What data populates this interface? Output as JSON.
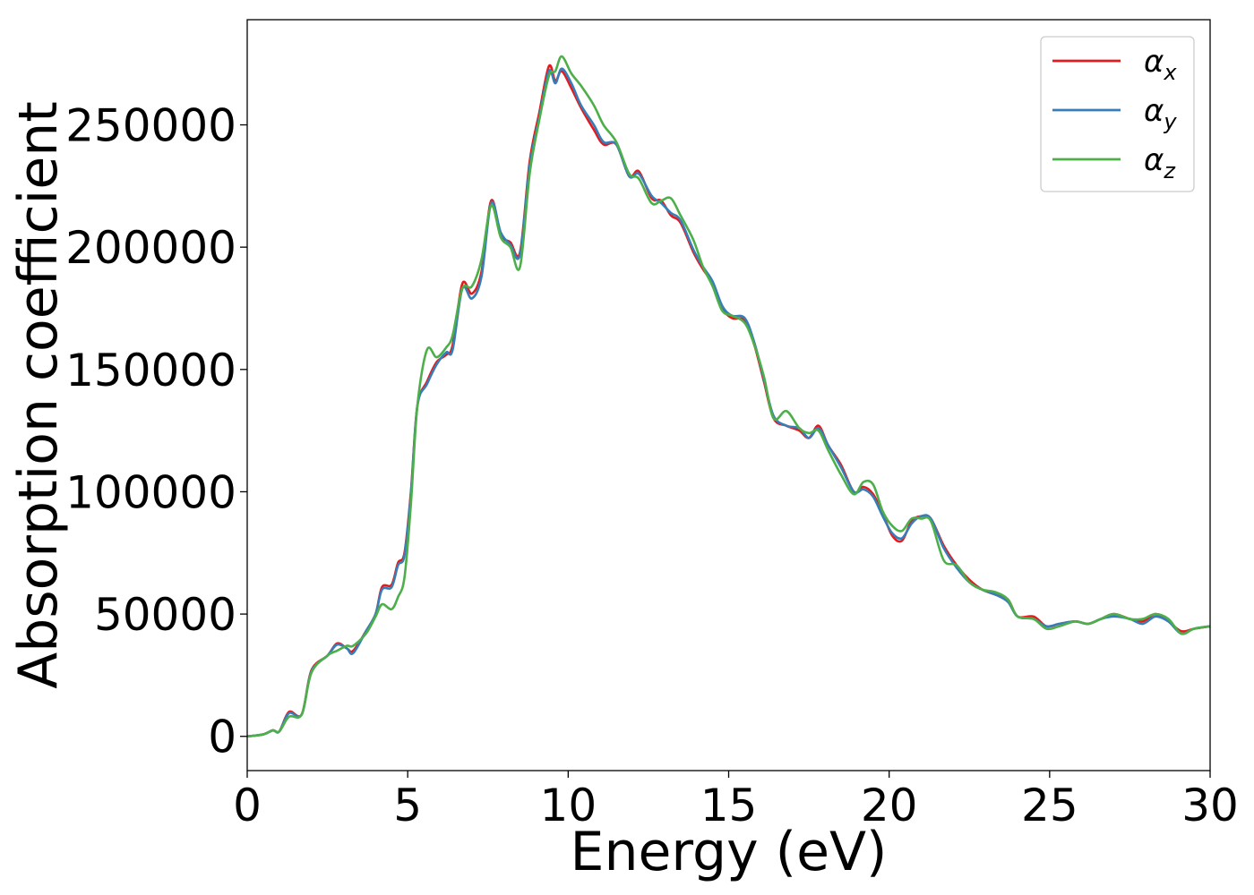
{
  "chart_data": {
    "type": "line",
    "title": "",
    "xlabel": "Energy (eV)",
    "ylabel": "Absorption coefficient",
    "xlim": [
      0,
      30
    ],
    "ylim": [
      -14000,
      293000
    ],
    "grid": false,
    "legend_position": "top-right",
    "x_ticks": [
      0,
      5,
      10,
      15,
      20,
      25,
      30
    ],
    "x_tick_labels": [
      "0",
      "5",
      "10",
      "15",
      "20",
      "25",
      "30"
    ],
    "y_ticks": [
      0,
      50000,
      100000,
      150000,
      200000,
      250000
    ],
    "y_tick_labels": [
      "0",
      "50000",
      "100000",
      "150000",
      "200000",
      "250000"
    ],
    "series": [
      {
        "name": "αx",
        "legend_symbol": "α",
        "legend_subscript": "x",
        "color": "#e41a1c",
        "points": [
          [
            0,
            0
          ],
          [
            0.5,
            800
          ],
          [
            0.8,
            2500
          ],
          [
            1.0,
            2000
          ],
          [
            1.3,
            10000
          ],
          [
            1.7,
            9000
          ],
          [
            2.0,
            27000
          ],
          [
            2.5,
            33000
          ],
          [
            2.8,
            38000
          ],
          [
            3.1,
            36000
          ],
          [
            3.3,
            35000
          ],
          [
            3.7,
            43000
          ],
          [
            4.0,
            50000
          ],
          [
            4.2,
            61000
          ],
          [
            4.5,
            62000
          ],
          [
            4.7,
            71000
          ],
          [
            4.9,
            75000
          ],
          [
            5.1,
            100000
          ],
          [
            5.3,
            135000
          ],
          [
            5.6,
            145000
          ],
          [
            5.9,
            153000
          ],
          [
            6.2,
            156000
          ],
          [
            6.4,
            160000
          ],
          [
            6.7,
            185000
          ],
          [
            7.0,
            181000
          ],
          [
            7.3,
            190000
          ],
          [
            7.6,
            219000
          ],
          [
            7.9,
            205000
          ],
          [
            8.2,
            202000
          ],
          [
            8.5,
            198000
          ],
          [
            8.8,
            235000
          ],
          [
            9.1,
            255000
          ],
          [
            9.4,
            274000
          ],
          [
            9.6,
            268000
          ],
          [
            9.8,
            272000
          ],
          [
            10.1,
            265000
          ],
          [
            10.4,
            257000
          ],
          [
            10.8,
            248000
          ],
          [
            11.1,
            242000
          ],
          [
            11.5,
            242000
          ],
          [
            11.9,
            229000
          ],
          [
            12.2,
            231000
          ],
          [
            12.6,
            220000
          ],
          [
            12.9,
            219000
          ],
          [
            13.2,
            213000
          ],
          [
            13.5,
            210000
          ],
          [
            13.9,
            198000
          ],
          [
            14.2,
            191000
          ],
          [
            14.5,
            185000
          ],
          [
            14.8,
            175000
          ],
          [
            15.1,
            171000
          ],
          [
            15.5,
            170000
          ],
          [
            15.8,
            160000
          ],
          [
            16.1,
            145000
          ],
          [
            16.4,
            130000
          ],
          [
            16.8,
            127000
          ],
          [
            17.2,
            125000
          ],
          [
            17.5,
            122000
          ],
          [
            17.8,
            127000
          ],
          [
            18.1,
            119000
          ],
          [
            18.5,
            111000
          ],
          [
            18.9,
            100000
          ],
          [
            19.2,
            102000
          ],
          [
            19.5,
            99000
          ],
          [
            19.8,
            91000
          ],
          [
            20.1,
            82000
          ],
          [
            20.4,
            80000
          ],
          [
            20.7,
            88000
          ],
          [
            21.0,
            90000
          ],
          [
            21.3,
            89000
          ],
          [
            21.7,
            78000
          ],
          [
            22.1,
            70000
          ],
          [
            22.5,
            64000
          ],
          [
            22.9,
            60000
          ],
          [
            23.3,
            58000
          ],
          [
            23.7,
            56000
          ],
          [
            24.0,
            49000
          ],
          [
            24.5,
            49000
          ],
          [
            24.9,
            45000
          ],
          [
            25.3,
            46000
          ],
          [
            25.8,
            47000
          ],
          [
            26.2,
            46000
          ],
          [
            26.6,
            48000
          ],
          [
            27.0,
            50000
          ],
          [
            27.5,
            48000
          ],
          [
            27.9,
            47000
          ],
          [
            28.3,
            50000
          ],
          [
            28.7,
            47000
          ],
          [
            29.1,
            43000
          ],
          [
            29.5,
            44000
          ],
          [
            30.0,
            45000
          ]
        ]
      },
      {
        "name": "αy",
        "legend_symbol": "α",
        "legend_subscript": "y",
        "color": "#377eb8",
        "points": [
          [
            0,
            0
          ],
          [
            0.5,
            800
          ],
          [
            0.8,
            2400
          ],
          [
            1.0,
            2000
          ],
          [
            1.3,
            9500
          ],
          [
            1.7,
            9000
          ],
          [
            2.0,
            26500
          ],
          [
            2.5,
            33000
          ],
          [
            2.8,
            37500
          ],
          [
            3.1,
            36000
          ],
          [
            3.3,
            34000
          ],
          [
            3.7,
            43000
          ],
          [
            4.0,
            50000
          ],
          [
            4.2,
            60000
          ],
          [
            4.5,
            61000
          ],
          [
            4.7,
            70000
          ],
          [
            4.9,
            74000
          ],
          [
            5.1,
            99000
          ],
          [
            5.3,
            135000
          ],
          [
            5.6,
            144000
          ],
          [
            5.9,
            152000
          ],
          [
            6.2,
            157000
          ],
          [
            6.4,
            158000
          ],
          [
            6.7,
            183000
          ],
          [
            7.0,
            179000
          ],
          [
            7.3,
            188000
          ],
          [
            7.6,
            218000
          ],
          [
            7.9,
            206000
          ],
          [
            8.2,
            201000
          ],
          [
            8.5,
            197000
          ],
          [
            8.8,
            233000
          ],
          [
            9.1,
            253000
          ],
          [
            9.4,
            272000
          ],
          [
            9.6,
            267000
          ],
          [
            9.8,
            273000
          ],
          [
            10.1,
            267000
          ],
          [
            10.4,
            258000
          ],
          [
            10.8,
            250000
          ],
          [
            11.1,
            243000
          ],
          [
            11.5,
            242000
          ],
          [
            11.9,
            229000
          ],
          [
            12.2,
            230000
          ],
          [
            12.6,
            221000
          ],
          [
            12.9,
            218000
          ],
          [
            13.2,
            214000
          ],
          [
            13.5,
            211000
          ],
          [
            13.9,
            199000
          ],
          [
            14.2,
            192000
          ],
          [
            14.5,
            186000
          ],
          [
            14.8,
            176000
          ],
          [
            15.1,
            172000
          ],
          [
            15.5,
            171000
          ],
          [
            15.8,
            161000
          ],
          [
            16.1,
            146000
          ],
          [
            16.4,
            131000
          ],
          [
            16.8,
            127000
          ],
          [
            17.2,
            126000
          ],
          [
            17.5,
            122000
          ],
          [
            17.8,
            126000
          ],
          [
            18.1,
            119000
          ],
          [
            18.5,
            110000
          ],
          [
            18.9,
            100000
          ],
          [
            19.2,
            101000
          ],
          [
            19.5,
            98000
          ],
          [
            19.8,
            90000
          ],
          [
            20.1,
            83000
          ],
          [
            20.4,
            81000
          ],
          [
            20.7,
            87000
          ],
          [
            21.0,
            90000
          ],
          [
            21.3,
            89000
          ],
          [
            21.7,
            77000
          ],
          [
            22.1,
            69000
          ],
          [
            22.5,
            63000
          ],
          [
            22.9,
            60000
          ],
          [
            23.3,
            58000
          ],
          [
            23.7,
            55000
          ],
          [
            24.0,
            49000
          ],
          [
            24.5,
            48000
          ],
          [
            24.9,
            45000
          ],
          [
            25.3,
            46000
          ],
          [
            25.8,
            47000
          ],
          [
            26.2,
            46000
          ],
          [
            26.6,
            48000
          ],
          [
            27.0,
            49000
          ],
          [
            27.5,
            48000
          ],
          [
            27.9,
            46000
          ],
          [
            28.3,
            49000
          ],
          [
            28.7,
            47000
          ],
          [
            29.1,
            42000
          ],
          [
            29.5,
            44000
          ],
          [
            30.0,
            45000
          ]
        ]
      },
      {
        "name": "αz",
        "legend_symbol": "α",
        "legend_subscript": "z",
        "color": "#4daf4a",
        "points": [
          [
            0,
            0
          ],
          [
            0.5,
            800
          ],
          [
            0.8,
            2500
          ],
          [
            1.0,
            2000
          ],
          [
            1.3,
            8000
          ],
          [
            1.7,
            9000
          ],
          [
            2.0,
            26000
          ],
          [
            2.5,
            33000
          ],
          [
            2.8,
            35000
          ],
          [
            3.1,
            37000
          ],
          [
            3.3,
            37000
          ],
          [
            3.7,
            42000
          ],
          [
            4.0,
            49000
          ],
          [
            4.2,
            54000
          ],
          [
            4.5,
            52000
          ],
          [
            4.7,
            57000
          ],
          [
            4.9,
            65000
          ],
          [
            5.1,
            95000
          ],
          [
            5.3,
            135000
          ],
          [
            5.6,
            158000
          ],
          [
            5.9,
            155000
          ],
          [
            6.2,
            159000
          ],
          [
            6.4,
            164000
          ],
          [
            6.7,
            183000
          ],
          [
            7.0,
            184000
          ],
          [
            7.3,
            195000
          ],
          [
            7.6,
            217000
          ],
          [
            7.9,
            204000
          ],
          [
            8.2,
            200000
          ],
          [
            8.5,
            192000
          ],
          [
            8.8,
            230000
          ],
          [
            9.1,
            252000
          ],
          [
            9.4,
            270000
          ],
          [
            9.6,
            272000
          ],
          [
            9.8,
            278000
          ],
          [
            10.1,
            271000
          ],
          [
            10.4,
            266000
          ],
          [
            10.8,
            258000
          ],
          [
            11.1,
            250000
          ],
          [
            11.5,
            243000
          ],
          [
            11.9,
            230000
          ],
          [
            12.2,
            228000
          ],
          [
            12.6,
            218000
          ],
          [
            12.9,
            219000
          ],
          [
            13.2,
            220000
          ],
          [
            13.5,
            213000
          ],
          [
            13.9,
            203000
          ],
          [
            14.2,
            192000
          ],
          [
            14.5,
            184000
          ],
          [
            14.8,
            174000
          ],
          [
            15.1,
            172000
          ],
          [
            15.5,
            169000
          ],
          [
            15.8,
            160000
          ],
          [
            16.1,
            147000
          ],
          [
            16.4,
            130000
          ],
          [
            16.8,
            133000
          ],
          [
            17.2,
            126000
          ],
          [
            17.5,
            124000
          ],
          [
            17.8,
            125000
          ],
          [
            18.1,
            117000
          ],
          [
            18.5,
            107000
          ],
          [
            18.9,
            99000
          ],
          [
            19.2,
            104000
          ],
          [
            19.5,
            103000
          ],
          [
            19.8,
            92000
          ],
          [
            20.1,
            86000
          ],
          [
            20.4,
            84000
          ],
          [
            20.7,
            89000
          ],
          [
            21.0,
            89000
          ],
          [
            21.3,
            88000
          ],
          [
            21.7,
            72000
          ],
          [
            22.1,
            70000
          ],
          [
            22.5,
            63000
          ],
          [
            22.9,
            60000
          ],
          [
            23.3,
            59000
          ],
          [
            23.7,
            56000
          ],
          [
            24.0,
            49000
          ],
          [
            24.5,
            48000
          ],
          [
            24.9,
            44000
          ],
          [
            25.3,
            45000
          ],
          [
            25.8,
            47000
          ],
          [
            26.2,
            46000
          ],
          [
            26.6,
            48000
          ],
          [
            27.0,
            50000
          ],
          [
            27.5,
            48000
          ],
          [
            27.9,
            48000
          ],
          [
            28.3,
            50000
          ],
          [
            28.7,
            48000
          ],
          [
            29.1,
            42000
          ],
          [
            29.5,
            44000
          ],
          [
            30.0,
            45000
          ]
        ]
      }
    ]
  }
}
